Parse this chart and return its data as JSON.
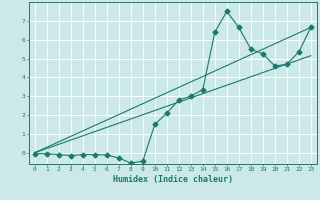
{
  "title": "",
  "xlabel": "Humidex (Indice chaleur)",
  "ylabel": "",
  "bg_color": "#cce8e8",
  "grid_color": "#ffffff",
  "line_color": "#1a7a6e",
  "xlim": [
    -0.5,
    23.5
  ],
  "ylim": [
    -0.6,
    8.0
  ],
  "yticks": [
    0,
    1,
    2,
    3,
    4,
    5,
    6,
    7
  ],
  "xticks": [
    0,
    1,
    2,
    3,
    4,
    5,
    6,
    7,
    8,
    9,
    10,
    11,
    12,
    13,
    14,
    15,
    16,
    17,
    18,
    19,
    20,
    21,
    22,
    23
  ],
  "series1_x": [
    0,
    1,
    2,
    3,
    4,
    5,
    6,
    7,
    8,
    9,
    10,
    11,
    12,
    13,
    14,
    15,
    16,
    17,
    18,
    19,
    20,
    21,
    22,
    23
  ],
  "series1_y": [
    -0.05,
    -0.05,
    -0.1,
    -0.15,
    -0.1,
    -0.1,
    -0.12,
    -0.28,
    -0.55,
    -0.45,
    1.5,
    2.1,
    2.8,
    3.0,
    3.35,
    6.4,
    7.5,
    6.65,
    5.5,
    5.25,
    4.6,
    4.7,
    5.35,
    6.65
  ],
  "series2_x": [
    0,
    23
  ],
  "series2_y": [
    0.0,
    6.65
  ],
  "series3_x": [
    0,
    23
  ],
  "series3_y": [
    0.0,
    5.15
  ],
  "marker": "D",
  "markersize": 2.5
}
